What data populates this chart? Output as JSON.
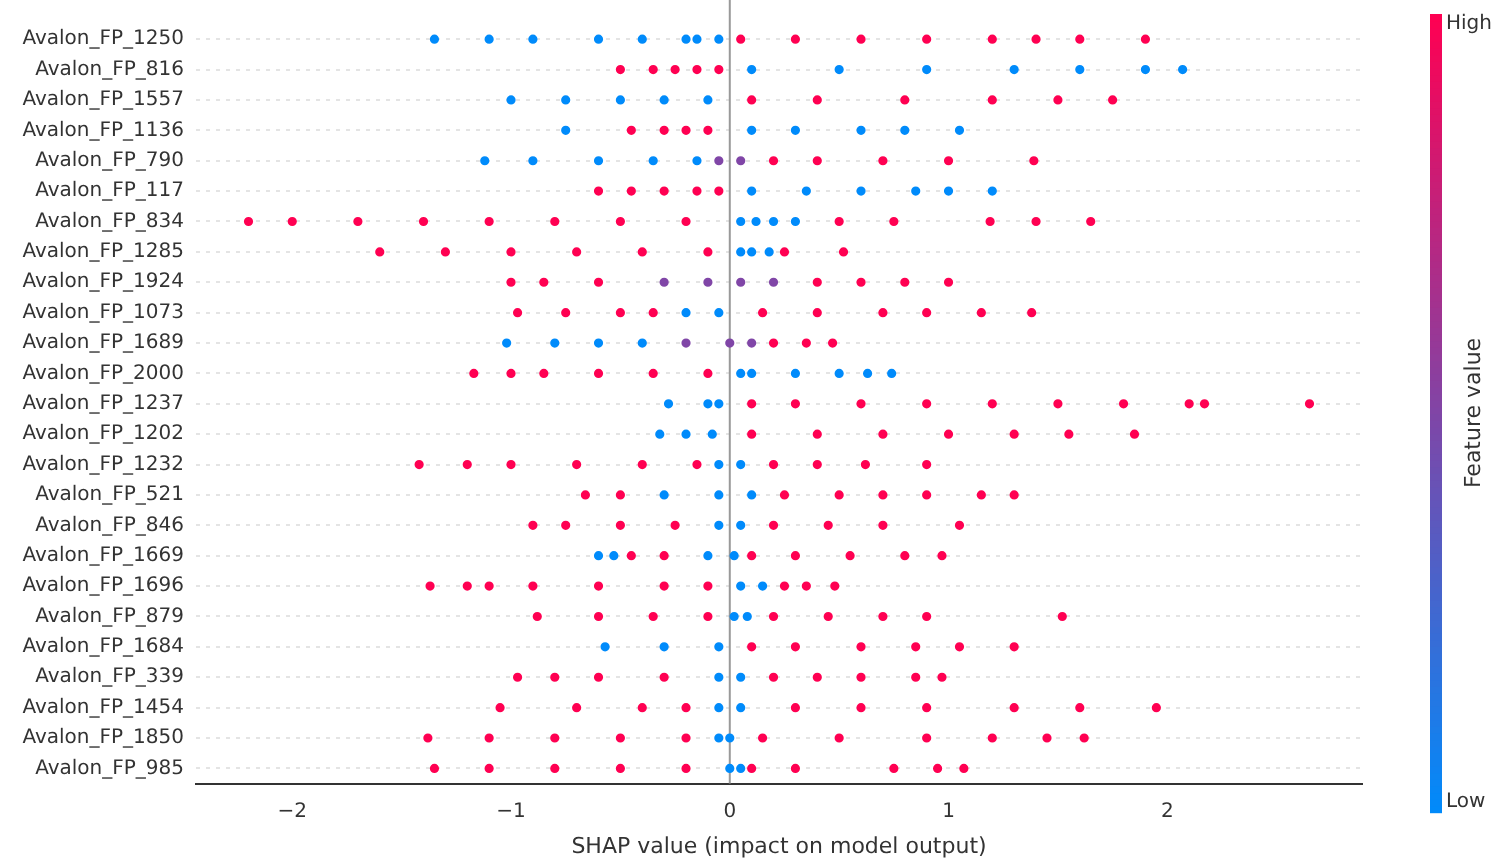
{
  "chart_data": {
    "type": "scatter",
    "orientation": "horizontal",
    "xlabel": "SHAP value (impact on model output)",
    "clabel": "Feature value",
    "marker": "circle",
    "grid": "y",
    "categories": [
      "Avalon_FP_1250",
      "Avalon_FP_816",
      "Avalon_FP_1557",
      "Avalon_FP_1136",
      "Avalon_FP_790",
      "Avalon_FP_117",
      "Avalon_FP_834",
      "Avalon_FP_1285",
      "Avalon_FP_1924",
      "Avalon_FP_1073",
      "Avalon_FP_1689",
      "Avalon_FP_2000",
      "Avalon_FP_1237",
      "Avalon_FP_1202",
      "Avalon_FP_1232",
      "Avalon_FP_521",
      "Avalon_FP_846",
      "Avalon_FP_1669",
      "Avalon_FP_1696",
      "Avalon_FP_879",
      "Avalon_FP_1684",
      "Avalon_FP_339",
      "Avalon_FP_1454",
      "Avalon_FP_1850",
      "Avalon_FP_985"
    ],
    "xlim": [
      -2.44,
      2.89
    ],
    "xticks": [
      {
        "value": -2,
        "label": "−2"
      },
      {
        "value": -1,
        "label": "−1"
      },
      0,
      1,
      2
    ],
    "clim": [
      0,
      1
    ],
    "cticks": [
      {
        "value": 0,
        "label": "Low"
      },
      {
        "value": 1,
        "label": "High"
      }
    ],
    "ref_lines": [
      {
        "axis": "x",
        "value": 0,
        "label": null,
        "color": "#999999"
      }
    ],
    "series": [
      {
        "x": [
          "Avalon_FP_1250",
          "Avalon_FP_1250",
          "Avalon_FP_1250",
          "Avalon_FP_1250",
          "Avalon_FP_1250",
          "Avalon_FP_1250",
          "Avalon_FP_1250",
          "Avalon_FP_1250",
          "Avalon_FP_1250",
          "Avalon_FP_1250",
          "Avalon_FP_1250",
          "Avalon_FP_1250",
          "Avalon_FP_1250",
          "Avalon_FP_1250",
          "Avalon_FP_1250",
          "Avalon_FP_1250"
        ],
        "values": [
          -1.35,
          -1.1,
          -0.9,
          -0.6,
          -0.4,
          -0.2,
          -0.15,
          -0.05,
          0.05,
          0.3,
          0.6,
          0.9,
          1.2,
          1.4,
          1.6,
          1.9
        ],
        "cvalues": [
          0,
          0,
          0,
          0,
          0,
          0,
          0,
          0,
          1,
          1,
          1,
          1,
          1,
          1,
          1,
          1
        ],
        "colors": [
          "#008bfb",
          "#008bfb",
          "#008bfb",
          "#008bfb",
          "#008bfb",
          "#008bfb",
          "#008bfb",
          "#008bfb",
          "#ff0052",
          "#ff0052",
          "#ff0052",
          "#ff0052",
          "#ff0052",
          "#ff0052",
          "#ff0052",
          "#ff0052"
        ]
      },
      {
        "x": [
          "Avalon_FP_816",
          "Avalon_FP_816",
          "Avalon_FP_816",
          "Avalon_FP_816",
          "Avalon_FP_816",
          "Avalon_FP_816",
          "Avalon_FP_816",
          "Avalon_FP_816",
          "Avalon_FP_816",
          "Avalon_FP_816",
          "Avalon_FP_816",
          "Avalon_FP_816"
        ],
        "values": [
          -0.5,
          -0.35,
          -0.25,
          -0.15,
          -0.05,
          0.1,
          0.5,
          0.9,
          1.3,
          1.6,
          1.9,
          2.07
        ],
        "cvalues": [
          1,
          1,
          1,
          1,
          1,
          0,
          0,
          0,
          0,
          0,
          0,
          0
        ],
        "colors": [
          "#ff0052",
          "#ff0052",
          "#ff0052",
          "#ff0052",
          "#ff0052",
          "#008bfb",
          "#008bfb",
          "#008bfb",
          "#008bfb",
          "#008bfb",
          "#008bfb",
          "#008bfb"
        ]
      },
      {
        "x": [
          "Avalon_FP_1557",
          "Avalon_FP_1557",
          "Avalon_FP_1557",
          "Avalon_FP_1557",
          "Avalon_FP_1557",
          "Avalon_FP_1557",
          "Avalon_FP_1557",
          "Avalon_FP_1557",
          "Avalon_FP_1557",
          "Avalon_FP_1557",
          "Avalon_FP_1557"
        ],
        "values": [
          -1.0,
          -0.75,
          -0.5,
          -0.3,
          -0.1,
          0.1,
          0.4,
          0.8,
          1.2,
          1.5,
          1.75
        ],
        "cvalues": [
          0,
          0,
          0,
          0,
          0,
          1,
          1,
          1,
          1,
          1,
          1
        ],
        "colors": [
          "#008bfb",
          "#008bfb",
          "#008bfb",
          "#008bfb",
          "#008bfb",
          "#ff0052",
          "#ff0052",
          "#ff0052",
          "#ff0052",
          "#ff0052",
          "#ff0052"
        ]
      },
      {
        "x": [
          "Avalon_FP_1136",
          "Avalon_FP_1136",
          "Avalon_FP_1136",
          "Avalon_FP_1136",
          "Avalon_FP_1136",
          "Avalon_FP_1136",
          "Avalon_FP_1136",
          "Avalon_FP_1136",
          "Avalon_FP_1136",
          "Avalon_FP_1136"
        ],
        "values": [
          -0.75,
          -0.45,
          -0.3,
          -0.2,
          -0.1,
          0.1,
          0.3,
          0.6,
          0.8,
          1.05
        ],
        "cvalues": [
          0,
          1,
          1,
          1,
          1,
          0,
          0,
          0,
          0,
          0
        ],
        "colors": [
          "#008bfb",
          "#ff0052",
          "#ff0052",
          "#ff0052",
          "#ff0052",
          "#008bfb",
          "#008bfb",
          "#008bfb",
          "#008bfb",
          "#008bfb"
        ]
      },
      {
        "x": [
          "Avalon_FP_790",
          "Avalon_FP_790",
          "Avalon_FP_790",
          "Avalon_FP_790",
          "Avalon_FP_790",
          "Avalon_FP_790",
          "Avalon_FP_790",
          "Avalon_FP_790",
          "Avalon_FP_790",
          "Avalon_FP_790",
          "Avalon_FP_790",
          "Avalon_FP_790"
        ],
        "values": [
          -1.12,
          -0.9,
          -0.6,
          -0.35,
          -0.15,
          -0.05,
          0.05,
          0.2,
          0.4,
          0.7,
          1.0,
          1.39
        ],
        "cvalues": [
          0,
          0,
          0,
          0,
          0,
          0.5,
          0.5,
          1,
          1,
          1,
          1,
          1
        ],
        "colors": [
          "#008bfb",
          "#008bfb",
          "#008bfb",
          "#008bfb",
          "#008bfb",
          "#8046a7",
          "#8046a7",
          "#ff0052",
          "#ff0052",
          "#ff0052",
          "#ff0052",
          "#ff0052"
        ]
      },
      {
        "x": [
          "Avalon_FP_117",
          "Avalon_FP_117",
          "Avalon_FP_117",
          "Avalon_FP_117",
          "Avalon_FP_117",
          "Avalon_FP_117",
          "Avalon_FP_117",
          "Avalon_FP_117",
          "Avalon_FP_117",
          "Avalon_FP_117",
          "Avalon_FP_117"
        ],
        "values": [
          -0.6,
          -0.45,
          -0.3,
          -0.15,
          -0.05,
          0.1,
          0.35,
          0.6,
          0.85,
          1.0,
          1.2
        ],
        "cvalues": [
          1,
          1,
          1,
          1,
          1,
          0,
          0,
          0,
          0,
          0,
          0
        ],
        "colors": [
          "#ff0052",
          "#ff0052",
          "#ff0052",
          "#ff0052",
          "#ff0052",
          "#008bfb",
          "#008bfb",
          "#008bfb",
          "#008bfb",
          "#008bfb",
          "#008bfb"
        ]
      },
      {
        "x": [
          "Avalon_FP_834",
          "Avalon_FP_834",
          "Avalon_FP_834",
          "Avalon_FP_834",
          "Avalon_FP_834",
          "Avalon_FP_834",
          "Avalon_FP_834",
          "Avalon_FP_834",
          "Avalon_FP_834",
          "Avalon_FP_834",
          "Avalon_FP_834",
          "Avalon_FP_834",
          "Avalon_FP_834",
          "Avalon_FP_834",
          "Avalon_FP_834",
          "Avalon_FP_834",
          "Avalon_FP_834"
        ],
        "values": [
          -2.2,
          -2.0,
          -1.7,
          -1.4,
          -1.1,
          -0.8,
          -0.5,
          -0.2,
          0.05,
          0.12,
          0.2,
          0.3,
          0.5,
          0.75,
          1.19,
          1.4,
          1.65
        ],
        "cvalues": [
          1,
          1,
          1,
          1,
          1,
          1,
          1,
          1,
          0,
          0,
          0,
          0,
          1,
          1,
          1,
          1,
          1
        ],
        "colors": [
          "#ff0052",
          "#ff0052",
          "#ff0052",
          "#ff0052",
          "#ff0052",
          "#ff0052",
          "#ff0052",
          "#ff0052",
          "#008bfb",
          "#008bfb",
          "#008bfb",
          "#008bfb",
          "#ff0052",
          "#ff0052",
          "#ff0052",
          "#ff0052",
          "#ff0052"
        ]
      },
      {
        "x": [
          "Avalon_FP_1285",
          "Avalon_FP_1285",
          "Avalon_FP_1285",
          "Avalon_FP_1285",
          "Avalon_FP_1285",
          "Avalon_FP_1285",
          "Avalon_FP_1285",
          "Avalon_FP_1285",
          "Avalon_FP_1285",
          "Avalon_FP_1285",
          "Avalon_FP_1285"
        ],
        "values": [
          -1.6,
          -1.3,
          -1.0,
          -0.7,
          -0.4,
          -0.1,
          0.05,
          0.1,
          0.18,
          0.25,
          0.52
        ],
        "cvalues": [
          1,
          1,
          1,
          1,
          1,
          1,
          0,
          0,
          0,
          1,
          1
        ],
        "colors": [
          "#ff0052",
          "#ff0052",
          "#ff0052",
          "#ff0052",
          "#ff0052",
          "#ff0052",
          "#008bfb",
          "#008bfb",
          "#008bfb",
          "#ff0052",
          "#ff0052"
        ]
      },
      {
        "x": [
          "Avalon_FP_1924",
          "Avalon_FP_1924",
          "Avalon_FP_1924",
          "Avalon_FP_1924",
          "Avalon_FP_1924",
          "Avalon_FP_1924",
          "Avalon_FP_1924",
          "Avalon_FP_1924",
          "Avalon_FP_1924",
          "Avalon_FP_1924",
          "Avalon_FP_1924"
        ],
        "values": [
          -1.0,
          -0.85,
          -0.6,
          -0.3,
          -0.1,
          0.05,
          0.2,
          0.4,
          0.6,
          0.8,
          1.0
        ],
        "cvalues": [
          1,
          1,
          1,
          0.5,
          0.5,
          0.5,
          0.5,
          1,
          1,
          1,
          1
        ],
        "colors": [
          "#ff0052",
          "#ff0052",
          "#ff0052",
          "#8046a7",
          "#8046a7",
          "#8046a7",
          "#8046a7",
          "#ff0052",
          "#ff0052",
          "#ff0052",
          "#ff0052"
        ]
      },
      {
        "x": [
          "Avalon_FP_1073",
          "Avalon_FP_1073",
          "Avalon_FP_1073",
          "Avalon_FP_1073",
          "Avalon_FP_1073",
          "Avalon_FP_1073",
          "Avalon_FP_1073",
          "Avalon_FP_1073",
          "Avalon_FP_1073",
          "Avalon_FP_1073",
          "Avalon_FP_1073",
          "Avalon_FP_1073"
        ],
        "values": [
          -0.97,
          -0.75,
          -0.5,
          -0.35,
          -0.2,
          -0.05,
          0.15,
          0.4,
          0.7,
          0.9,
          1.15,
          1.38
        ],
        "cvalues": [
          1,
          1,
          1,
          1,
          0,
          0,
          1,
          1,
          1,
          1,
          1,
          1
        ],
        "colors": [
          "#ff0052",
          "#ff0052",
          "#ff0052",
          "#ff0052",
          "#008bfb",
          "#008bfb",
          "#ff0052",
          "#ff0052",
          "#ff0052",
          "#ff0052",
          "#ff0052",
          "#ff0052"
        ]
      },
      {
        "x": [
          "Avalon_FP_1689",
          "Avalon_FP_1689",
          "Avalon_FP_1689",
          "Avalon_FP_1689",
          "Avalon_FP_1689",
          "Avalon_FP_1689",
          "Avalon_FP_1689",
          "Avalon_FP_1689",
          "Avalon_FP_1689",
          "Avalon_FP_1689"
        ],
        "values": [
          -1.02,
          -0.8,
          -0.6,
          -0.4,
          -0.2,
          0,
          0.1,
          0.2,
          0.35,
          0.47
        ],
        "cvalues": [
          0,
          0,
          0,
          0,
          0.5,
          0.5,
          0.5,
          1,
          1,
          1
        ],
        "colors": [
          "#008bfb",
          "#008bfb",
          "#008bfb",
          "#008bfb",
          "#8046a7",
          "#8046a7",
          "#8046a7",
          "#ff0052",
          "#ff0052",
          "#ff0052"
        ]
      },
      {
        "x": [
          "Avalon_FP_2000",
          "Avalon_FP_2000",
          "Avalon_FP_2000",
          "Avalon_FP_2000",
          "Avalon_FP_2000",
          "Avalon_FP_2000",
          "Avalon_FP_2000",
          "Avalon_FP_2000",
          "Avalon_FP_2000",
          "Avalon_FP_2000",
          "Avalon_FP_2000",
          "Avalon_FP_2000"
        ],
        "values": [
          -1.17,
          -1.0,
          -0.85,
          -0.6,
          -0.35,
          -0.1,
          0.05,
          0.1,
          0.3,
          0.5,
          0.63,
          0.74
        ],
        "cvalues": [
          1,
          1,
          1,
          1,
          1,
          1,
          0,
          0,
          0,
          0,
          0,
          0
        ],
        "colors": [
          "#ff0052",
          "#ff0052",
          "#ff0052",
          "#ff0052",
          "#ff0052",
          "#ff0052",
          "#008bfb",
          "#008bfb",
          "#008bfb",
          "#008bfb",
          "#008bfb",
          "#008bfb"
        ]
      },
      {
        "x": [
          "Avalon_FP_1237",
          "Avalon_FP_1237",
          "Avalon_FP_1237",
          "Avalon_FP_1237",
          "Avalon_FP_1237",
          "Avalon_FP_1237",
          "Avalon_FP_1237",
          "Avalon_FP_1237",
          "Avalon_FP_1237",
          "Avalon_FP_1237",
          "Avalon_FP_1237",
          "Avalon_FP_1237",
          "Avalon_FP_1237"
        ],
        "values": [
          -0.28,
          -0.1,
          -0.05,
          0.1,
          0.3,
          0.6,
          0.9,
          1.2,
          1.5,
          1.8,
          2.1,
          2.17,
          2.65
        ],
        "cvalues": [
          0,
          0,
          0,
          1,
          1,
          1,
          1,
          1,
          1,
          1,
          1,
          1,
          1
        ],
        "colors": [
          "#008bfb",
          "#008bfb",
          "#008bfb",
          "#ff0052",
          "#ff0052",
          "#ff0052",
          "#ff0052",
          "#ff0052",
          "#ff0052",
          "#ff0052",
          "#ff0052",
          "#ff0052",
          "#ff0052"
        ]
      },
      {
        "x": [
          "Avalon_FP_1202",
          "Avalon_FP_1202",
          "Avalon_FP_1202",
          "Avalon_FP_1202",
          "Avalon_FP_1202",
          "Avalon_FP_1202",
          "Avalon_FP_1202",
          "Avalon_FP_1202",
          "Avalon_FP_1202",
          "Avalon_FP_1202"
        ],
        "values": [
          -0.32,
          -0.2,
          -0.08,
          0.1,
          0.4,
          0.7,
          1.0,
          1.3,
          1.55,
          1.85
        ],
        "cvalues": [
          0,
          0,
          0,
          1,
          1,
          1,
          1,
          1,
          1,
          1
        ],
        "colors": [
          "#008bfb",
          "#008bfb",
          "#008bfb",
          "#ff0052",
          "#ff0052",
          "#ff0052",
          "#ff0052",
          "#ff0052",
          "#ff0052",
          "#ff0052"
        ]
      },
      {
        "x": [
          "Avalon_FP_1232",
          "Avalon_FP_1232",
          "Avalon_FP_1232",
          "Avalon_FP_1232",
          "Avalon_FP_1232",
          "Avalon_FP_1232",
          "Avalon_FP_1232",
          "Avalon_FP_1232",
          "Avalon_FP_1232",
          "Avalon_FP_1232",
          "Avalon_FP_1232",
          "Avalon_FP_1232"
        ],
        "values": [
          -1.42,
          -1.2,
          -1.0,
          -0.7,
          -0.4,
          -0.15,
          -0.05,
          0.05,
          0.2,
          0.4,
          0.62,
          0.9
        ],
        "cvalues": [
          1,
          1,
          1,
          1,
          1,
          1,
          0,
          0,
          1,
          1,
          1,
          1
        ],
        "colors": [
          "#ff0052",
          "#ff0052",
          "#ff0052",
          "#ff0052",
          "#ff0052",
          "#ff0052",
          "#008bfb",
          "#008bfb",
          "#ff0052",
          "#ff0052",
          "#ff0052",
          "#ff0052"
        ]
      },
      {
        "x": [
          "Avalon_FP_521",
          "Avalon_FP_521",
          "Avalon_FP_521",
          "Avalon_FP_521",
          "Avalon_FP_521",
          "Avalon_FP_521",
          "Avalon_FP_521",
          "Avalon_FP_521",
          "Avalon_FP_521",
          "Avalon_FP_521",
          "Avalon_FP_521"
        ],
        "values": [
          -0.66,
          -0.5,
          -0.3,
          -0.05,
          0.1,
          0.25,
          0.5,
          0.7,
          0.9,
          1.15,
          1.3
        ],
        "cvalues": [
          1,
          1,
          0,
          0,
          0,
          1,
          1,
          1,
          1,
          1,
          1
        ],
        "colors": [
          "#ff0052",
          "#ff0052",
          "#008bfb",
          "#008bfb",
          "#008bfb",
          "#ff0052",
          "#ff0052",
          "#ff0052",
          "#ff0052",
          "#ff0052",
          "#ff0052"
        ]
      },
      {
        "x": [
          "Avalon_FP_846",
          "Avalon_FP_846",
          "Avalon_FP_846",
          "Avalon_FP_846",
          "Avalon_FP_846",
          "Avalon_FP_846",
          "Avalon_FP_846",
          "Avalon_FP_846",
          "Avalon_FP_846",
          "Avalon_FP_846"
        ],
        "values": [
          -0.9,
          -0.75,
          -0.5,
          -0.25,
          -0.05,
          0.05,
          0.2,
          0.45,
          0.7,
          1.05
        ],
        "cvalues": [
          1,
          1,
          1,
          1,
          0,
          0,
          1,
          1,
          1,
          1
        ],
        "colors": [
          "#ff0052",
          "#ff0052",
          "#ff0052",
          "#ff0052",
          "#008bfb",
          "#008bfb",
          "#ff0052",
          "#ff0052",
          "#ff0052",
          "#ff0052"
        ]
      },
      {
        "x": [
          "Avalon_FP_1669",
          "Avalon_FP_1669",
          "Avalon_FP_1669",
          "Avalon_FP_1669",
          "Avalon_FP_1669",
          "Avalon_FP_1669",
          "Avalon_FP_1669",
          "Avalon_FP_1669",
          "Avalon_FP_1669",
          "Avalon_FP_1669",
          "Avalon_FP_1669"
        ],
        "values": [
          -0.6,
          -0.53,
          -0.45,
          -0.3,
          -0.1,
          0.02,
          0.1,
          0.3,
          0.55,
          0.8,
          0.97
        ],
        "cvalues": [
          0,
          0,
          1,
          1,
          0,
          0,
          1,
          1,
          1,
          1,
          1
        ],
        "colors": [
          "#008bfb",
          "#008bfb",
          "#ff0052",
          "#ff0052",
          "#008bfb",
          "#008bfb",
          "#ff0052",
          "#ff0052",
          "#ff0052",
          "#ff0052",
          "#ff0052"
        ]
      },
      {
        "x": [
          "Avalon_FP_1696",
          "Avalon_FP_1696",
          "Avalon_FP_1696",
          "Avalon_FP_1696",
          "Avalon_FP_1696",
          "Avalon_FP_1696",
          "Avalon_FP_1696",
          "Avalon_FP_1696",
          "Avalon_FP_1696",
          "Avalon_FP_1696",
          "Avalon_FP_1696",
          "Avalon_FP_1696"
        ],
        "values": [
          -1.37,
          -1.2,
          -1.1,
          -0.9,
          -0.6,
          -0.3,
          -0.1,
          0.05,
          0.15,
          0.25,
          0.35,
          0.48
        ],
        "cvalues": [
          1,
          1,
          1,
          1,
          1,
          1,
          1,
          0,
          0,
          1,
          1,
          1
        ],
        "colors": [
          "#ff0052",
          "#ff0052",
          "#ff0052",
          "#ff0052",
          "#ff0052",
          "#ff0052",
          "#ff0052",
          "#008bfb",
          "#008bfb",
          "#ff0052",
          "#ff0052",
          "#ff0052"
        ]
      },
      {
        "x": [
          "Avalon_FP_879",
          "Avalon_FP_879",
          "Avalon_FP_879",
          "Avalon_FP_879",
          "Avalon_FP_879",
          "Avalon_FP_879",
          "Avalon_FP_879",
          "Avalon_FP_879",
          "Avalon_FP_879",
          "Avalon_FP_879",
          "Avalon_FP_879"
        ],
        "values": [
          -0.88,
          -0.6,
          -0.35,
          -0.1,
          0.02,
          0.08,
          0.2,
          0.45,
          0.7,
          0.9,
          1.52
        ],
        "cvalues": [
          1,
          1,
          1,
          1,
          0,
          0,
          1,
          1,
          1,
          1,
          1
        ],
        "colors": [
          "#ff0052",
          "#ff0052",
          "#ff0052",
          "#ff0052",
          "#008bfb",
          "#008bfb",
          "#ff0052",
          "#ff0052",
          "#ff0052",
          "#ff0052",
          "#ff0052"
        ]
      },
      {
        "x": [
          "Avalon_FP_1684",
          "Avalon_FP_1684",
          "Avalon_FP_1684",
          "Avalon_FP_1684",
          "Avalon_FP_1684",
          "Avalon_FP_1684",
          "Avalon_FP_1684",
          "Avalon_FP_1684",
          "Avalon_FP_1684"
        ],
        "values": [
          -0.57,
          -0.3,
          -0.05,
          0.1,
          0.3,
          0.6,
          0.85,
          1.05,
          1.3
        ],
        "cvalues": [
          0,
          0,
          0,
          1,
          1,
          1,
          1,
          1,
          1
        ],
        "colors": [
          "#008bfb",
          "#008bfb",
          "#008bfb",
          "#ff0052",
          "#ff0052",
          "#ff0052",
          "#ff0052",
          "#ff0052",
          "#ff0052"
        ]
      },
      {
        "x": [
          "Avalon_FP_339",
          "Avalon_FP_339",
          "Avalon_FP_339",
          "Avalon_FP_339",
          "Avalon_FP_339",
          "Avalon_FP_339",
          "Avalon_FP_339",
          "Avalon_FP_339",
          "Avalon_FP_339",
          "Avalon_FP_339",
          "Avalon_FP_339"
        ],
        "values": [
          -0.97,
          -0.8,
          -0.6,
          -0.3,
          -0.05,
          0.05,
          0.2,
          0.4,
          0.6,
          0.85,
          0.97
        ],
        "cvalues": [
          1,
          1,
          1,
          1,
          0,
          0,
          1,
          1,
          1,
          1,
          1
        ],
        "colors": [
          "#ff0052",
          "#ff0052",
          "#ff0052",
          "#ff0052",
          "#008bfb",
          "#008bfb",
          "#ff0052",
          "#ff0052",
          "#ff0052",
          "#ff0052",
          "#ff0052"
        ]
      },
      {
        "x": [
          "Avalon_FP_1454",
          "Avalon_FP_1454",
          "Avalon_FP_1454",
          "Avalon_FP_1454",
          "Avalon_FP_1454",
          "Avalon_FP_1454",
          "Avalon_FP_1454",
          "Avalon_FP_1454",
          "Avalon_FP_1454",
          "Avalon_FP_1454",
          "Avalon_FP_1454",
          "Avalon_FP_1454"
        ],
        "values": [
          -1.05,
          -0.7,
          -0.4,
          -0.2,
          -0.05,
          0.05,
          0.3,
          0.6,
          0.9,
          1.3,
          1.6,
          1.95
        ],
        "cvalues": [
          1,
          1,
          1,
          1,
          0,
          0,
          1,
          1,
          1,
          1,
          1,
          1
        ],
        "colors": [
          "#ff0052",
          "#ff0052",
          "#ff0052",
          "#ff0052",
          "#008bfb",
          "#008bfb",
          "#ff0052",
          "#ff0052",
          "#ff0052",
          "#ff0052",
          "#ff0052",
          "#ff0052"
        ]
      },
      {
        "x": [
          "Avalon_FP_1850",
          "Avalon_FP_1850",
          "Avalon_FP_1850",
          "Avalon_FP_1850",
          "Avalon_FP_1850",
          "Avalon_FP_1850",
          "Avalon_FP_1850",
          "Avalon_FP_1850",
          "Avalon_FP_1850",
          "Avalon_FP_1850",
          "Avalon_FP_1850",
          "Avalon_FP_1850",
          "Avalon_FP_1850"
        ],
        "values": [
          -1.38,
          -1.1,
          -0.8,
          -0.5,
          -0.2,
          -0.05,
          0.0,
          0.15,
          0.5,
          0.9,
          1.2,
          1.45,
          1.62
        ],
        "cvalues": [
          1,
          1,
          1,
          1,
          1,
          0,
          0,
          1,
          1,
          1,
          1,
          1,
          1
        ],
        "colors": [
          "#ff0052",
          "#ff0052",
          "#ff0052",
          "#ff0052",
          "#ff0052",
          "#008bfb",
          "#008bfb",
          "#ff0052",
          "#ff0052",
          "#ff0052",
          "#ff0052",
          "#ff0052",
          "#ff0052"
        ]
      },
      {
        "x": [
          "Avalon_FP_985",
          "Avalon_FP_985",
          "Avalon_FP_985",
          "Avalon_FP_985",
          "Avalon_FP_985",
          "Avalon_FP_985",
          "Avalon_FP_985",
          "Avalon_FP_985",
          "Avalon_FP_985",
          "Avalon_FP_985",
          "Avalon_FP_985",
          "Avalon_FP_985"
        ],
        "values": [
          -1.35,
          -1.1,
          -0.8,
          -0.5,
          -0.2,
          0.0,
          0.05,
          0.1,
          0.3,
          0.75,
          0.95,
          1.07
        ],
        "cvalues": [
          1,
          1,
          1,
          1,
          1,
          0,
          0,
          1,
          1,
          1,
          1,
          1
        ],
        "colors": [
          "#ff0052",
          "#ff0052",
          "#ff0052",
          "#ff0052",
          "#ff0052",
          "#008bfb",
          "#008bfb",
          "#ff0052",
          "#ff0052",
          "#ff0052",
          "#ff0052",
          "#ff0052"
        ]
      }
    ]
  }
}
